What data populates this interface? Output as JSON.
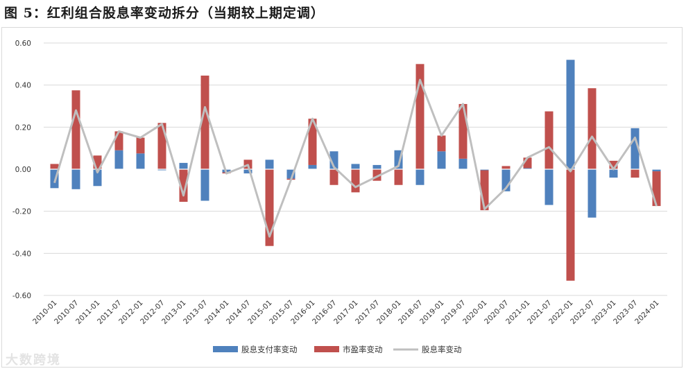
{
  "title": "图 5：红利组合股息率变动拆分（当期较上期定调）",
  "watermark": "大数跨境",
  "colors": {
    "dividend": "#4f81bd",
    "pe": "#c0504d",
    "total": "#bfbfbf",
    "grid": "#d9d9d9"
  },
  "chart_data": {
    "type": "bar",
    "title": "红利组合股息率变动拆分（当期较上期定调）",
    "ylim": [
      -0.6,
      0.6
    ],
    "yticks": [
      "0.60",
      "0.40",
      "0.20",
      "0.00",
      "-0.20",
      "-0.40",
      "-0.60"
    ],
    "grid": true,
    "legend_position": "bottom",
    "categories": [
      "2010-01",
      "2010-07",
      "2011-01",
      "2011-07",
      "2012-01",
      "2012-07",
      "2013-01",
      "2013-07",
      "2014-01",
      "2014-07",
      "2015-01",
      "2015-07",
      "2016-01",
      "2016-07",
      "2017-01",
      "2017-07",
      "2018-01",
      "2018-07",
      "2019-01",
      "2019-07",
      "2020-01",
      "2020-07",
      "2021-01",
      "2021-07",
      "2022-01",
      "2022-07",
      "2023-01",
      "2023-07",
      "2024-01"
    ],
    "series": [
      {
        "name": "股息支付率变动",
        "kind": "bar",
        "values": [
          -0.09,
          -0.095,
          -0.08,
          0.09,
          0.075,
          -0.005,
          0.03,
          -0.15,
          -0.015,
          -0.02,
          0.045,
          -0.045,
          0.02,
          0.085,
          0.025,
          0.02,
          0.09,
          -0.075,
          0.085,
          0.05,
          -0.005,
          -0.105,
          0.005,
          -0.17,
          0.52,
          -0.23,
          -0.04,
          0.195,
          -0.01
        ]
      },
      {
        "name": "市盈率变动",
        "kind": "bar",
        "values": [
          0.025,
          0.375,
          0.065,
          0.09,
          0.075,
          0.22,
          -0.155,
          0.445,
          -0.005,
          0.045,
          -0.365,
          -0.005,
          0.22,
          -0.075,
          -0.11,
          -0.055,
          -0.075,
          0.5,
          0.075,
          0.26,
          -0.19,
          0.015,
          0.05,
          0.275,
          -0.53,
          0.385,
          0.04,
          -0.04,
          -0.165
        ]
      },
      {
        "name": "股息率变动",
        "kind": "line",
        "values": [
          -0.065,
          0.28,
          -0.015,
          0.18,
          0.15,
          0.215,
          -0.125,
          0.295,
          -0.02,
          0.02,
          -0.32,
          -0.05,
          0.24,
          0.01,
          -0.085,
          -0.035,
          0.015,
          0.425,
          0.16,
          0.31,
          -0.19,
          -0.09,
          0.055,
          0.105,
          -0.01,
          0.155,
          0,
          0.15,
          -0.175
        ]
      }
    ]
  }
}
